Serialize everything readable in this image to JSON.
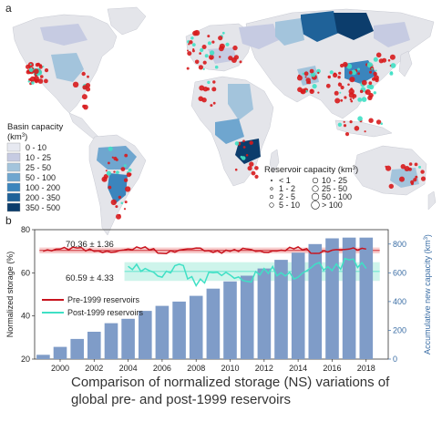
{
  "panels": {
    "a": "a",
    "b": "b"
  },
  "map": {
    "basin_legend_title_line1": "Basin capacity",
    "basin_legend_title_line2": "(km",
    "basin_legend_title_sup": "3",
    "basin_legend_title_end": ")",
    "basin_classes": [
      {
        "label": "0 - 10",
        "color": "#e7e9f1"
      },
      {
        "label": "10 - 25",
        "color": "#c6cbe2"
      },
      {
        "label": "25 - 50",
        "color": "#a3c4dc"
      },
      {
        "label": "50 - 100",
        "color": "#6fa6cf"
      },
      {
        "label": "100 - 200",
        "color": "#3b85bd"
      },
      {
        "label": "200 - 350",
        "color": "#1f6299"
      },
      {
        "label": "350 - 500",
        "color": "#0c3d6c"
      }
    ],
    "reservoir_legend_title": "Reservoir capacity (km",
    "reservoir_legend_sup": "3",
    "reservoir_legend_end": ")",
    "reservoir_classes_left": [
      "< 1",
      "1 - 2",
      "2 - 5",
      "5 - 10"
    ],
    "reservoir_classes_right": [
      "10 - 25",
      "25 - 50",
      "50 - 100",
      "> 100"
    ],
    "colors": {
      "pre1999": "#d7191c",
      "post1999": "#3fe0c5",
      "land": "#e4e5ea"
    }
  },
  "chart_data": {
    "type": "bar+line",
    "x": [
      1999,
      2000,
      2001,
      2002,
      2003,
      2004,
      2005,
      2006,
      2007,
      2008,
      2009,
      2010,
      2011,
      2012,
      2013,
      2014,
      2015,
      2016,
      2017,
      2018
    ],
    "x_ticks": [
      "2000",
      "2002",
      "2004",
      "2006",
      "2008",
      "2010",
      "2012",
      "2014",
      "2016",
      "2018"
    ],
    "bars": {
      "name": "Accumulative new capacity",
      "values": [
        30,
        85,
        140,
        190,
        250,
        280,
        335,
        370,
        400,
        440,
        490,
        540,
        580,
        630,
        690,
        740,
        800,
        840,
        845,
        845
      ],
      "color": "#7f9cc8"
    },
    "series": [
      {
        "name": "Pre-1999 reservoirs",
        "color": "#c8141e",
        "mean_label": "70.36 ± 1.36",
        "values": [
          70,
          71,
          71.5,
          70,
          69.5,
          71,
          72,
          69,
          70.5,
          71.5,
          69.5,
          70,
          71,
          69.5,
          70.5,
          72,
          69,
          70.5,
          71,
          71
        ]
      },
      {
        "name": "Post-1999 reservoirs",
        "color": "#3fe0c5",
        "mean_label": "60.59 ± 4.33",
        "values": [
          null,
          null,
          null,
          null,
          null,
          63,
          62,
          58,
          64,
          54,
          60,
          59,
          56,
          62,
          60,
          58,
          64,
          61,
          66,
          62
        ]
      }
    ],
    "left_axis": {
      "label": "Normalized storage (%)",
      "ylim": [
        20,
        80
      ],
      "ticks": [
        "20",
        "40",
        "60",
        "80"
      ]
    },
    "right_axis": {
      "label_main": "Accumulative new capacity (km",
      "label_sup": "3",
      "label_end": ")",
      "ylim": [
        0,
        900
      ],
      "ticks": [
        "0",
        "200",
        "400",
        "600",
        "800"
      ]
    },
    "bands": [
      {
        "name": "Pre-1999 reservoirs",
        "center": 70.36,
        "halfwidth": 1.36,
        "color": "#f4b6b6"
      },
      {
        "name": "Post-1999 reservoirs",
        "center": 60.59,
        "halfwidth": 4.33,
        "color": "#b9efe3"
      }
    ],
    "legend_position": "left-middle",
    "grid": false
  },
  "caption": "Comparison of normalized storage (NS) variations of global pre- and post-1999 reservoirs"
}
